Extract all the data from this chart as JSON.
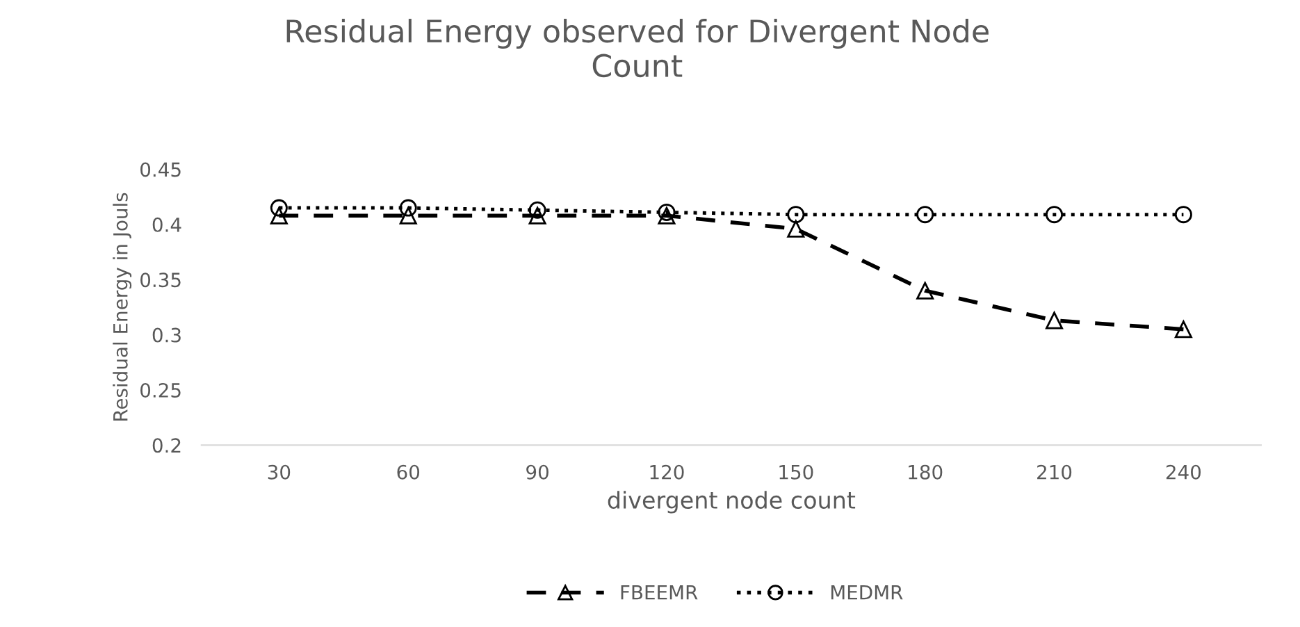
{
  "chart_data": {
    "type": "line",
    "title": "Residual Energy observed for Divergent Node\nCount",
    "xlabel": "divergent node count",
    "ylabel": "Residual Energy in Jouls",
    "categories": [
      "30",
      "60",
      "90",
      "120",
      "150",
      "180",
      "210",
      "240"
    ],
    "series": [
      {
        "name": "FBEEMR",
        "color": "#000000",
        "values": [
          0.408,
          0.408,
          0.408,
          0.408,
          0.396,
          0.34,
          0.313,
          0.305
        ],
        "marker": "triangle",
        "line_style": "dashed"
      },
      {
        "name": "MEDMR",
        "color": "#000000",
        "values": [
          0.415,
          0.415,
          0.413,
          0.411,
          0.409,
          0.409,
          0.409,
          0.409
        ],
        "marker": "circle",
        "line_style": "dotted"
      }
    ],
    "ylim": [
      0.2,
      0.45
    ],
    "yticks": [
      0.2,
      0.25,
      0.3,
      0.35,
      0.4,
      0.45
    ],
    "grid": false,
    "legend": "bottom"
  }
}
